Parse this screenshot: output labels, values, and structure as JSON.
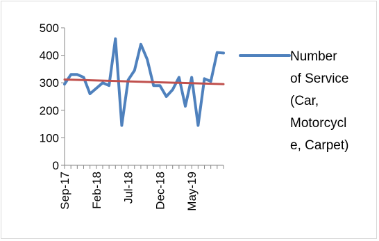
{
  "chart_data": {
    "type": "line",
    "title": "",
    "xlabel": "",
    "ylabel": "",
    "ylim": [
      0,
      500
    ],
    "yticks": [
      0,
      100,
      200,
      300,
      400,
      500
    ],
    "xticks": [
      "Sep-17",
      "Feb-18",
      "Jul-18",
      "Dec-18",
      "May-19"
    ],
    "x": [
      "Sep-17",
      "Oct-17",
      "Nov-17",
      "Dec-17",
      "Jan-18",
      "Feb-18",
      "Mar-18",
      "Apr-18",
      "May-18",
      "Jun-18",
      "Jul-18",
      "Aug-18",
      "Sep-18",
      "Oct-18",
      "Nov-18",
      "Dec-18",
      "Jan-19",
      "Feb-19",
      "Mar-19",
      "Apr-19",
      "May-19",
      "Jun-19",
      "Jul-19",
      "Aug-19",
      "Sep-19",
      "Oct-19"
    ],
    "series": [
      {
        "name": "Number of Service (Car, Motorcycle, Carpet)",
        "color": "#4f81bd",
        "values": [
          295,
          330,
          330,
          320,
          260,
          280,
          300,
          290,
          460,
          145,
          310,
          345,
          440,
          385,
          290,
          290,
          250,
          275,
          320,
          215,
          320,
          145,
          315,
          305,
          410,
          408
        ]
      }
    ],
    "trendline": {
      "type": "linear",
      "color": "#c0504d",
      "start_value": 312,
      "end_value": 295
    },
    "legend_lines": [
      "Number",
      "of Service",
      "(Car,",
      "Motorcycl",
      "e, Carpet)"
    ],
    "legend_position": "right",
    "grid": false
  }
}
